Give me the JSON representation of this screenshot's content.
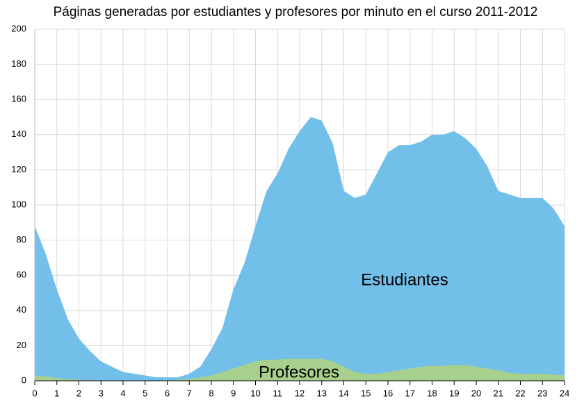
{
  "chart_data": {
    "type": "area",
    "title": "Páginas generadas por estudiantes y profesores por minuto en el curso 2011-2012",
    "x": [
      0,
      0.5,
      1,
      1.5,
      2,
      2.5,
      3,
      3.5,
      4,
      4.5,
      5,
      5.5,
      6,
      6.5,
      7,
      7.5,
      8,
      8.5,
      9,
      9.5,
      10,
      10.5,
      11,
      11.5,
      12,
      12.5,
      13,
      13.5,
      14,
      14.5,
      15,
      15.5,
      16,
      16.5,
      17,
      17.5,
      18,
      18.5,
      19,
      19.5,
      20,
      20.5,
      21,
      21.5,
      22,
      22.5,
      23,
      23.5,
      24
    ],
    "series": [
      {
        "name": "Estudiantes",
        "color": "#72bfea",
        "values": [
          88,
          72,
          52,
          35,
          24,
          17,
          11,
          8,
          5,
          4,
          3,
          2,
          2,
          2,
          4,
          8,
          18,
          30,
          52,
          67,
          88,
          108,
          118,
          132,
          142,
          150,
          148,
          135,
          108,
          104,
          106,
          118,
          130,
          134,
          134,
          136,
          140,
          140,
          142,
          138,
          132,
          122,
          108,
          106,
          104,
          104,
          104,
          98,
          88
        ]
      },
      {
        "name": "Profesores",
        "color": "#a8d08d",
        "values": [
          3,
          2.5,
          1.5,
          1,
          0.5,
          0.3,
          0.2,
          0.2,
          0.1,
          0.1,
          0.1,
          0.2,
          0.3,
          0.5,
          1,
          2,
          3,
          5,
          7,
          9,
          11,
          12,
          12,
          12.5,
          12.5,
          12.5,
          12.5,
          11,
          8,
          5,
          4,
          4,
          5,
          6,
          7,
          8,
          8.5,
          8.5,
          9,
          9,
          8,
          7,
          6,
          4.5,
          4,
          4,
          4,
          3.5,
          3
        ]
      }
    ],
    "xlim": [
      0,
      24
    ],
    "xticks": [
      0,
      1,
      2,
      3,
      4,
      5,
      6,
      7,
      8,
      9,
      10,
      11,
      12,
      13,
      14,
      15,
      16,
      17,
      18,
      19,
      20,
      21,
      22,
      23,
      24
    ],
    "ylim": [
      0,
      200
    ],
    "yticks": [
      0,
      20,
      40,
      60,
      80,
      100,
      120,
      140,
      160,
      180,
      200
    ],
    "grid": true
  }
}
